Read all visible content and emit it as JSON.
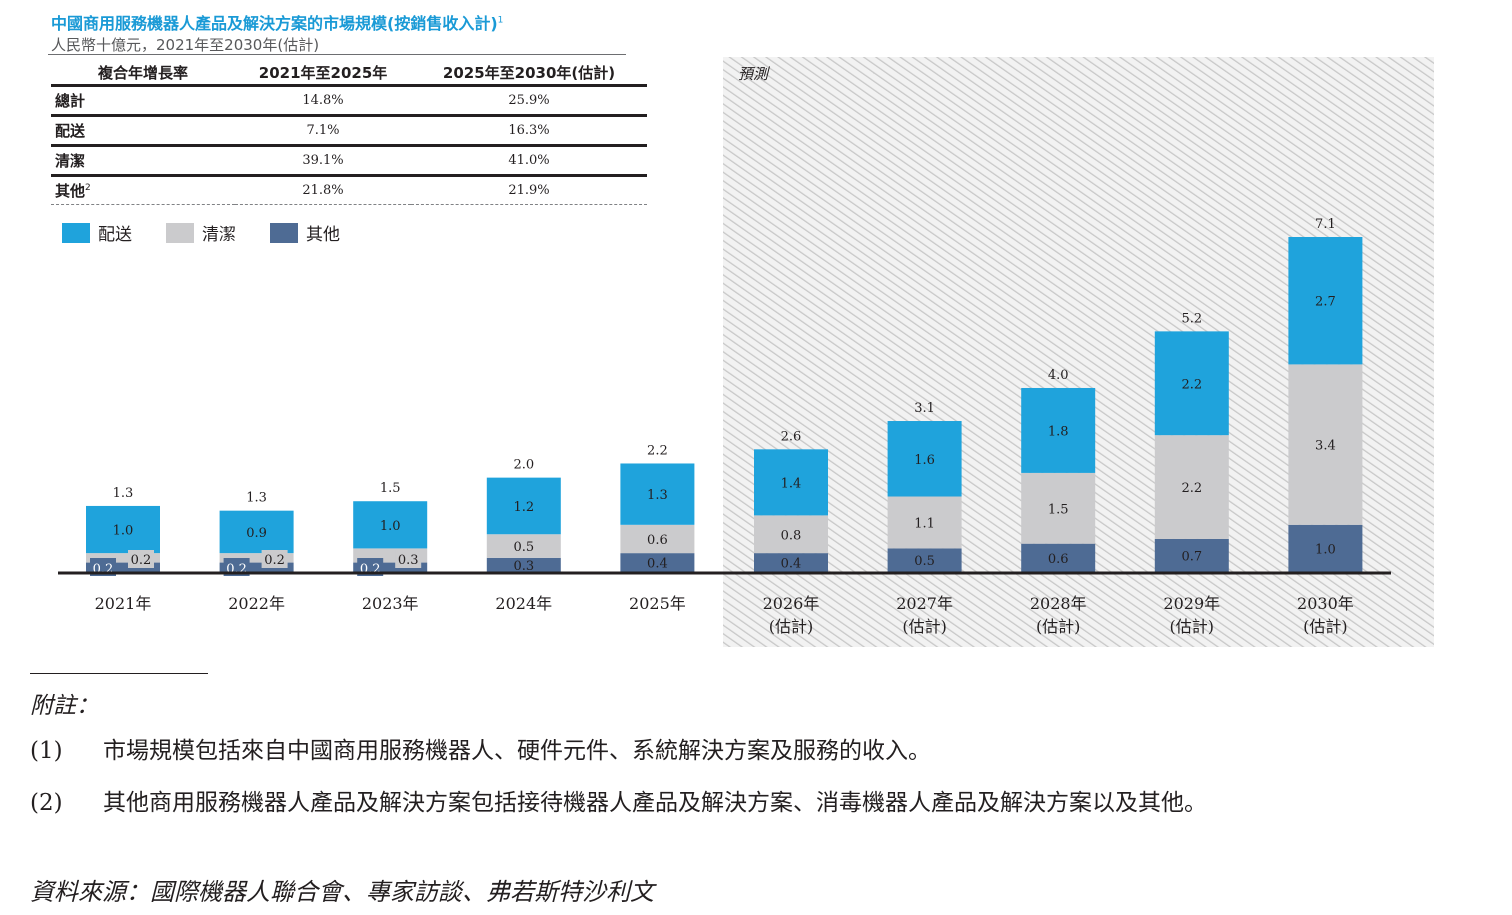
{
  "title": "中國商用服務機器人產品及解決方案的市場規模(按銷售收入計)",
  "title_note": "1",
  "subtitle": "人民幣十億元，2021年至2030年(估計)",
  "cagr_table": {
    "headers": [
      "複合年增長率",
      "2021年至2025年",
      "2025年至2030年(估計)"
    ],
    "rows": [
      {
        "label": "總計",
        "note": "",
        "v1": "14.8%",
        "v2": "25.9%"
      },
      {
        "label": "配送",
        "note": "",
        "v1": "7.1%",
        "v2": "16.3%"
      },
      {
        "label": "清潔",
        "note": "",
        "v1": "39.1%",
        "v2": "41.0%"
      },
      {
        "label": "其他",
        "note": "2",
        "v1": "21.8%",
        "v2": "21.9%"
      }
    ]
  },
  "legend": [
    {
      "label": "配送",
      "color": "#1fa3dc"
    },
    {
      "label": "清潔",
      "color": "#cbcbcd"
    },
    {
      "label": "其他",
      "color": "#4e6b94"
    }
  ],
  "forecast_label": "預測",
  "chart_data": {
    "type": "bar",
    "stacked": true,
    "categories": [
      "2021年",
      "2022年",
      "2023年",
      "2024年",
      "2025年",
      "2026年(估計)",
      "2027年(估計)",
      "2028年(估計)",
      "2029年(估計)",
      "2030年(估計)"
    ],
    "category_lines": [
      [
        "2021年"
      ],
      [
        "2022年"
      ],
      [
        "2023年"
      ],
      [
        "2024年"
      ],
      [
        "2025年"
      ],
      [
        "2026年",
        "(估計)"
      ],
      [
        "2027年",
        "(估計)"
      ],
      [
        "2028年",
        "(估計)"
      ],
      [
        "2029年",
        "(估計)"
      ],
      [
        "2030年",
        "(估計)"
      ]
    ],
    "series": [
      {
        "name": "其他",
        "color": "#4e6b94",
        "values": [
          0.2,
          0.2,
          0.2,
          0.3,
          0.4,
          0.4,
          0.5,
          0.6,
          0.7,
          1.0
        ]
      },
      {
        "name": "清潔",
        "color": "#cbcbcd",
        "values": [
          0.2,
          0.2,
          0.3,
          0.5,
          0.6,
          0.8,
          1.1,
          1.5,
          2.2,
          3.4
        ]
      },
      {
        "name": "配送",
        "color": "#1fa3dc",
        "values": [
          1.0,
          0.9,
          1.0,
          1.2,
          1.3,
          1.4,
          1.6,
          1.8,
          2.2,
          2.7
        ]
      }
    ],
    "totals": [
      1.3,
      1.3,
      1.5,
      2.0,
      2.2,
      2.6,
      3.1,
      4.0,
      5.2,
      7.1
    ],
    "labels": {
      "其他": [
        "0.2",
        "0.2",
        "0.2",
        "0.3",
        "0.4",
        "0.4",
        "0.5",
        "0.6",
        "0.7",
        "1.0"
      ],
      "清潔": [
        "0.2",
        "0.2",
        "0.3",
        "0.5",
        "0.6",
        "0.8",
        "1.1",
        "1.5",
        "2.2",
        "3.4"
      ],
      "配送": [
        "1.0",
        "0.9",
        "1.0",
        "1.2",
        "1.3",
        "1.4",
        "1.6",
        "1.8",
        "2.2",
        "2.7"
      ],
      "total": [
        "1.3",
        "1.3",
        "1.5",
        "2.0",
        "2.2",
        "2.6",
        "3.1",
        "4.0",
        "5.2",
        "7.1"
      ]
    },
    "forecast_from_index": 5,
    "ylim": [
      0,
      7.1
    ],
    "grid": false,
    "legend_position": "top-left"
  },
  "footnotes": {
    "heading": "附註：",
    "items": [
      {
        "num": "(1)",
        "text": "市場規模包括來自中國商用服務機器人、硬件元件、系統解決方案及服務的收入。"
      },
      {
        "num": "(2)",
        "text": "其他商用服務機器人產品及解決方案包括接待機器人產品及解決方案、消毒機器人產品及解決方案以及其他。"
      }
    ],
    "source": "資料來源：國際機器人聯合會、專家訪談、弗若斯特沙利文"
  }
}
